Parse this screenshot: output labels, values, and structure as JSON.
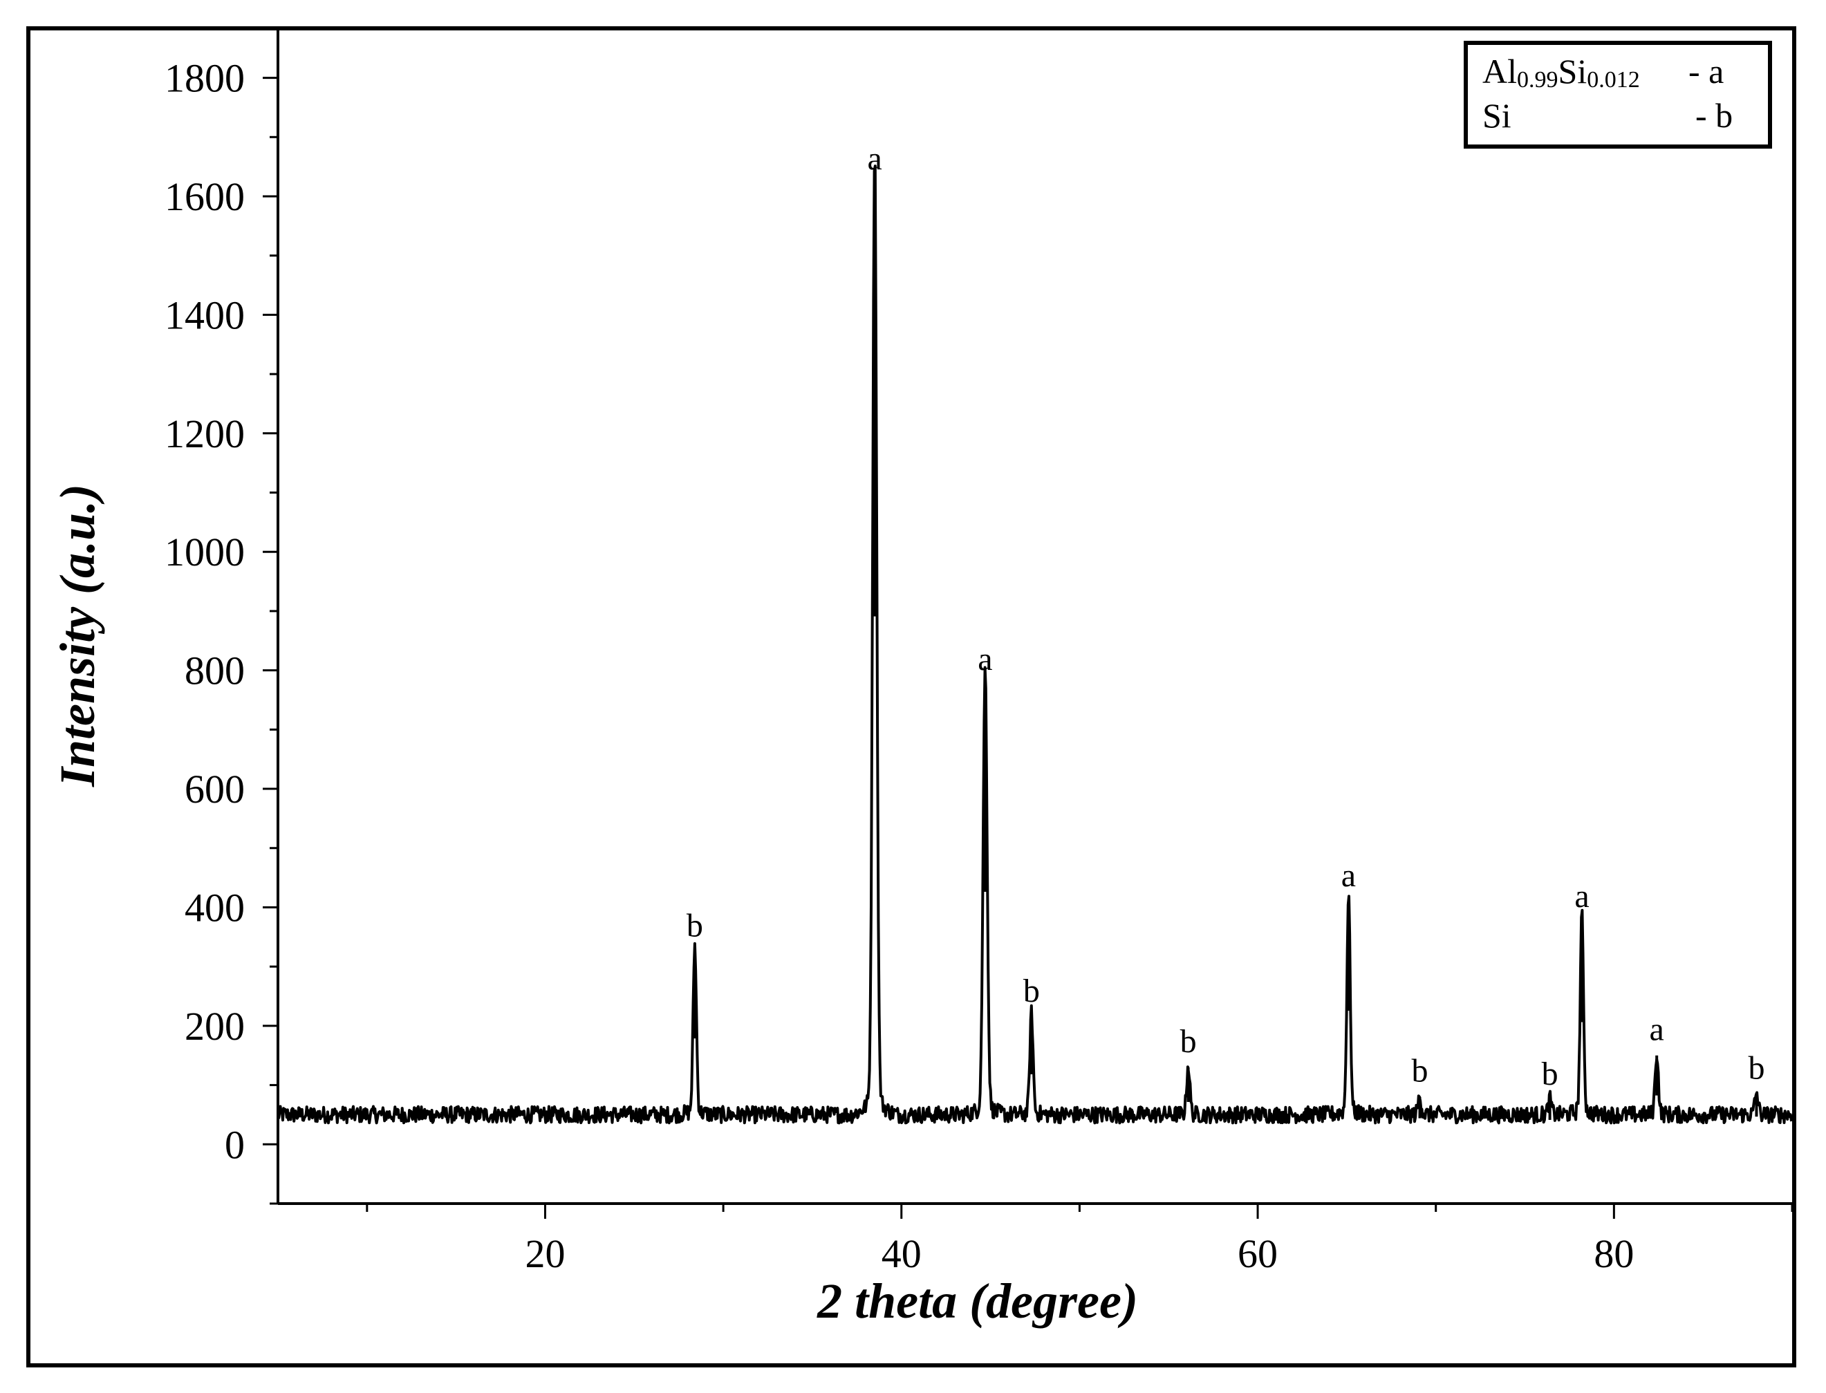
{
  "chart_data": {
    "type": "line",
    "title": "",
    "xlabel": "2 theta (degree)",
    "ylabel": "Intensity (a.u.)",
    "xlim": [
      5,
      90
    ],
    "ylim": [
      -100,
      1880
    ],
    "x_ticks": [
      20,
      40,
      60,
      80
    ],
    "y_ticks": [
      0,
      200,
      400,
      600,
      800,
      1000,
      1200,
      1400,
      1600,
      1800
    ],
    "grid": false,
    "baseline": 50,
    "series": [
      {
        "peaks": [
          {
            "x": 28.4,
            "y": 325,
            "label": "b"
          },
          {
            "x": 38.5,
            "y": 1620,
            "label": "a"
          },
          {
            "x": 44.7,
            "y": 775,
            "label": "a"
          },
          {
            "x": 47.3,
            "y": 215,
            "label": "b"
          },
          {
            "x": 56.1,
            "y": 130,
            "label": "b"
          },
          {
            "x": 65.1,
            "y": 410,
            "label": "a"
          },
          {
            "x": 69.1,
            "y": 80,
            "label": "b"
          },
          {
            "x": 76.4,
            "y": 75,
            "label": "b"
          },
          {
            "x": 78.2,
            "y": 375,
            "label": "a"
          },
          {
            "x": 82.4,
            "y": 150,
            "label": "a"
          },
          {
            "x": 88.0,
            "y": 85,
            "label": "b"
          }
        ]
      }
    ],
    "legend": {
      "placement": "top-right",
      "entries": [
        {
          "name_main": "Al",
          "sub1": "0.99",
          "name_mid": "Si",
          "sub2": "0.012",
          "key": "- a"
        },
        {
          "name_main": "Si",
          "key": "- b"
        }
      ]
    }
  }
}
